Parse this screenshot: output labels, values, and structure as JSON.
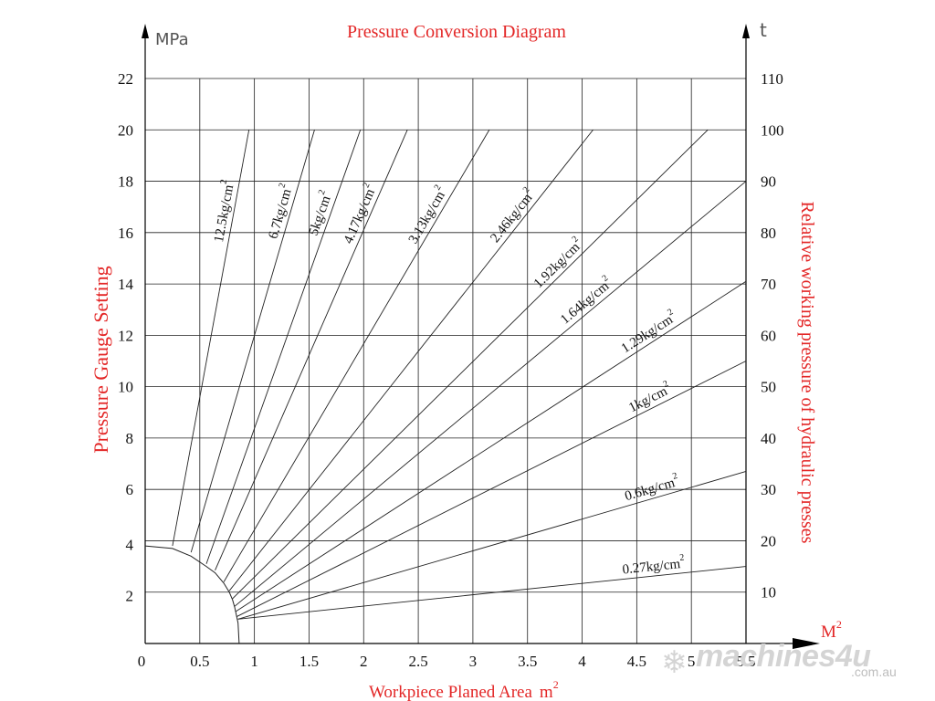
{
  "chart_data": {
    "type": "line",
    "title": "Pressure Conversion Diagram",
    "xlabel": "Workpiece Planed Area",
    "xlabel_unit": "m",
    "xlabel_unit_sup": "2",
    "x_arrow_label": "M",
    "x_arrow_label_sup": "2",
    "ylabel_left": "Pressure Gauge Setting",
    "ylabel_left_unit": "MPa",
    "ylabel_right": "Relative working pressure of hydraulic presses",
    "ylabel_right_unit": "t",
    "xlim": [
      0,
      5.5
    ],
    "ylim_left": [
      0,
      22
    ],
    "ylim_right": [
      0,
      110
    ],
    "grid": true,
    "x_ticks": [
      {
        "value": 0,
        "label": "0"
      },
      {
        "value": 0.5,
        "label": "0.5"
      },
      {
        "value": 1,
        "label": "1"
      },
      {
        "value": 1.5,
        "label": "1.5"
      },
      {
        "value": 2,
        "label": "2"
      },
      {
        "value": 2.5,
        "label": "2.5"
      },
      {
        "value": 3,
        "label": "3"
      },
      {
        "value": 3.5,
        "label": "3.5"
      },
      {
        "value": 4,
        "label": "4"
      },
      {
        "value": 4.5,
        "label": "4.5"
      },
      {
        "value": 5,
        "label": "5"
      },
      {
        "value": 5.5,
        "label": "5.5"
      }
    ],
    "y_left_ticks": [
      {
        "value": 2,
        "label": "2"
      },
      {
        "value": 4,
        "label": "4"
      },
      {
        "value": 6,
        "label": "6"
      },
      {
        "value": 8,
        "label": "8"
      },
      {
        "value": 10,
        "label": "10"
      },
      {
        "value": 12,
        "label": "12"
      },
      {
        "value": 14,
        "label": "14"
      },
      {
        "value": 16,
        "label": "16"
      },
      {
        "value": 18,
        "label": "18"
      },
      {
        "value": 20,
        "label": "20"
      },
      {
        "value": 22,
        "label": "22"
      }
    ],
    "y_right_ticks": [
      {
        "value": 10,
        "label": "10"
      },
      {
        "value": 20,
        "label": "20"
      },
      {
        "value": 30,
        "label": "30"
      },
      {
        "value": 40,
        "label": "40"
      },
      {
        "value": 50,
        "label": "50"
      },
      {
        "value": 60,
        "label": "60"
      },
      {
        "value": 70,
        "label": "70"
      },
      {
        "value": 80,
        "label": "80"
      },
      {
        "value": 90,
        "label": "90"
      },
      {
        "value": 100,
        "label": "100"
      },
      {
        "value": 110,
        "label": "110"
      }
    ],
    "series": [
      {
        "name": "12.5kg/cm²",
        "label": "12.5kg/cm",
        "sup": "2",
        "x": [
          0.25,
          0.95
        ],
        "y": [
          3.8,
          20
        ]
      },
      {
        "name": "6.7kg/cm²",
        "label": "6.7kg/cm",
        "sup": "2",
        "x": [
          0.42,
          1.55
        ],
        "y": [
          3.55,
          20
        ]
      },
      {
        "name": "5kg/cm²",
        "label": "5kg/cm",
        "sup": "2",
        "x": [
          0.56,
          1.97
        ],
        "y": [
          3.1,
          20
        ]
      },
      {
        "name": "4.17kg/cm²",
        "label": "4.17kg/cm",
        "sup": "2",
        "x": [
          0.64,
          2.4
        ],
        "y": [
          2.85,
          20
        ]
      },
      {
        "name": "3.13kg/cm²",
        "label": "3.13kg/cm",
        "sup": "2",
        "x": [
          0.72,
          3.15
        ],
        "y": [
          2.4,
          20
        ]
      },
      {
        "name": "2.46kg/cm²",
        "label": "2.46kg/cm",
        "sup": "2",
        "x": [
          0.77,
          4.1
        ],
        "y": [
          2.05,
          20
        ]
      },
      {
        "name": "1.92kg/cm²",
        "label": "1.92kg/cm",
        "sup": "2",
        "x": [
          0.8,
          5.15
        ],
        "y": [
          1.75,
          20
        ]
      },
      {
        "name": "1.64kg/cm²",
        "label": "1.64kg/cm",
        "sup": "2",
        "x": [
          0.82,
          5.5
        ],
        "y": [
          1.45,
          18
        ]
      },
      {
        "name": "1.29kg/cm²",
        "label": "1.29kg/cm",
        "sup": "2",
        "x": [
          0.83,
          5.5
        ],
        "y": [
          1.25,
          14.1
        ]
      },
      {
        "name": "1kg/cm²",
        "label": "1kg/cm",
        "sup": "2",
        "x": [
          0.84,
          5.5
        ],
        "y": [
          1.05,
          11
        ]
      },
      {
        "name": "0.6kg/cm²",
        "label": "0.6kg/cm",
        "sup": "2",
        "x": [
          0.85,
          5.5
        ],
        "y": [
          0.95,
          6.7
        ]
      },
      {
        "name": "0.27kg/cm²",
        "label": "0.27kg/cm",
        "sup": "2",
        "x": [
          0.85,
          5.5
        ],
        "y": [
          0.95,
          3
        ]
      }
    ],
    "boundary_curve": {
      "x": [
        0,
        0.25,
        0.42,
        0.56,
        0.64,
        0.72,
        0.77,
        0.8,
        0.82,
        0.83,
        0.84,
        0.85,
        0.86
      ],
      "y": [
        3.8,
        3.7,
        3.4,
        3.0,
        2.75,
        2.35,
        2.0,
        1.7,
        1.4,
        1.2,
        1.0,
        0.8,
        0
      ]
    }
  },
  "watermark": {
    "brand": "machines4u",
    "domain": ".com.au"
  }
}
